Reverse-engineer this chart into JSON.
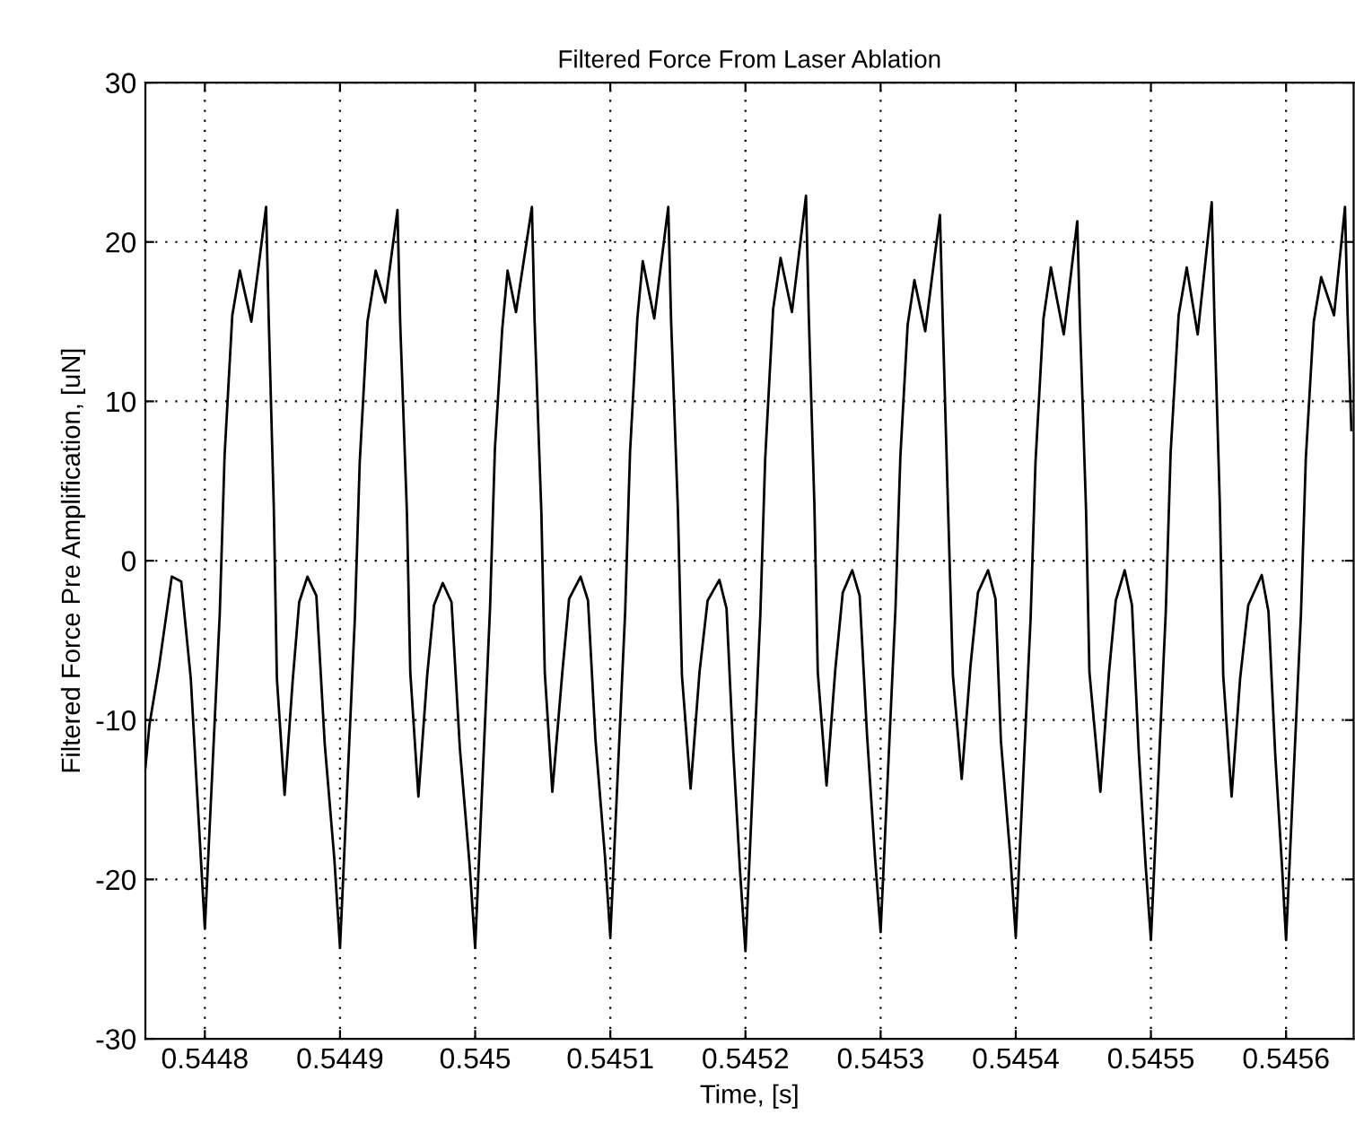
{
  "chart_data": {
    "type": "line",
    "title": "Filtered Force From Laser Ablation",
    "xlabel": "Time, [s]",
    "ylabel": "Filtered Force Pre Amplification, [uN]",
    "xlim": [
      0.544756,
      0.54565
    ],
    "xticks": [
      0.5448,
      0.5449,
      0.545,
      0.5451,
      0.5452,
      0.5453,
      0.5454,
      0.5455,
      0.5456
    ],
    "ylim": [
      -30,
      30
    ],
    "yticks": [
      -30,
      -20,
      -10,
      0,
      10,
      20,
      30
    ],
    "grid": true,
    "marker": "none",
    "line_style": "solid",
    "series": [
      {
        "color": "#000000",
        "x": [
          0.544756,
          0.544759,
          0.544766,
          0.5447755,
          0.5447825,
          0.5447896,
          0.5447943,
          0.5448,
          0.544811,
          0.5448146,
          0.5448203,
          0.5448259,
          0.5448344,
          0.5448401,
          0.5448453,
          0.5448472,
          0.544851,
          0.5448533,
          0.544859,
          0.5448651,
          0.5448698,
          0.5448759,
          0.5448825,
          0.5448887,
          0.5448958,
          0.5449,
          0.544911,
          0.5449146,
          0.5449203,
          0.5449264,
          0.5449335,
          0.5449425,
          0.5449445,
          0.5449495,
          0.544952,
          0.544958,
          0.5449645,
          0.5449695,
          0.544976,
          0.5449825,
          0.5449887,
          0.5449958,
          0.545,
          0.545011,
          0.5450146,
          0.54502,
          0.545024,
          0.5450302,
          0.545042,
          0.545044,
          0.545049,
          0.5450515,
          0.5450571,
          0.5450645,
          0.5450695,
          0.545078,
          0.5450835,
          0.545089,
          0.545096,
          0.5451,
          0.545111,
          0.5451146,
          0.54512,
          0.545124,
          0.5451325,
          0.5451429,
          0.545145,
          0.54515,
          0.545153,
          0.5451594,
          0.545166,
          0.545172,
          0.5451807,
          0.545186,
          0.545191,
          0.545196,
          0.5452,
          0.545211,
          0.5452146,
          0.5452205,
          0.545226,
          0.5452344,
          0.5452448,
          0.5452468,
          0.545251,
          0.5452535,
          0.54526,
          0.5452665,
          0.545272,
          0.545279,
          0.5452845,
          0.54529,
          0.545296,
          0.5453,
          0.545311,
          0.5453146,
          0.54532,
          0.545325,
          0.545333,
          0.5453439,
          0.545346,
          0.54535,
          0.5453535,
          0.54536,
          0.5453665,
          0.545372,
          0.5453795,
          0.545385,
          0.545389,
          0.545396,
          0.5454,
          0.545411,
          0.5454146,
          0.5454205,
          0.545426,
          0.5454355,
          0.5454455,
          0.5454475,
          0.545452,
          0.5454545,
          0.5454626,
          0.545469,
          0.545474,
          0.5454806,
          0.545486,
          0.545491,
          0.545496,
          0.5455,
          0.545511,
          0.5455146,
          0.5455205,
          0.5455265,
          0.5455346,
          0.545545,
          0.545547,
          0.545551,
          0.5455535,
          0.5455597,
          0.545566,
          0.545572,
          0.545582,
          0.545587,
          0.545592,
          0.545597,
          0.5456,
          0.545611,
          0.5456146,
          0.5456205,
          0.545626,
          0.5456355,
          0.5456436,
          0.5456455,
          0.5456483
        ],
        "values": [
          -13,
          -10.3,
          -6.7,
          -1,
          -1.3,
          -7.4,
          -14.6,
          -23.1,
          -3.4,
          6.6,
          15.4,
          18.2,
          15,
          18.7,
          22.2,
          15.4,
          3.4,
          -7.4,
          -14.7,
          -7.4,
          -2.6,
          -1,
          -2.2,
          -11.5,
          -18.7,
          -24.3,
          -3.6,
          6.2,
          15,
          18.2,
          16.2,
          22,
          15,
          3,
          -7,
          -14.8,
          -7.2,
          -2.8,
          -1.4,
          -2.6,
          -11.8,
          -19,
          -24.3,
          -3,
          7,
          14.5,
          18.2,
          15.6,
          22.2,
          15,
          3,
          -7,
          -14.5,
          -7,
          -2.4,
          -1,
          -2.5,
          -11.2,
          -18.5,
          -23.6,
          -3.2,
          6.8,
          15.2,
          18.8,
          15.2,
          22.2,
          15,
          3.2,
          -7.2,
          -14.3,
          -7,
          -2.5,
          -1.2,
          -3,
          -12,
          -19.5,
          -24.5,
          -3.4,
          6.4,
          15.8,
          19,
          15.6,
          22.9,
          15.5,
          3.5,
          -7,
          -14.1,
          -6.8,
          -2,
          -0.6,
          -2.2,
          -11,
          -18.8,
          -23.3,
          -3,
          6.5,
          14.8,
          17.6,
          14.4,
          21.7,
          15,
          3,
          -7.2,
          -13.7,
          -6.6,
          -2,
          -0.6,
          -2.4,
          -11.3,
          -18.6,
          -23.6,
          -3.6,
          6.2,
          15.2,
          18.4,
          14.2,
          21.3,
          15,
          3.2,
          -7,
          -14.5,
          -7,
          -2.5,
          -0.6,
          -2.8,
          -12,
          -19,
          -23.8,
          -3.2,
          6.8,
          15.4,
          18.4,
          14.2,
          22.5,
          15.2,
          3.5,
          -7.2,
          -14.8,
          -7.4,
          -2.8,
          -0.9,
          -3.2,
          -12.2,
          -19.2,
          -23.8,
          -3.4,
          6.4,
          15,
          17.8,
          15.4,
          22.2,
          15.5,
          8.2
        ]
      }
    ]
  }
}
